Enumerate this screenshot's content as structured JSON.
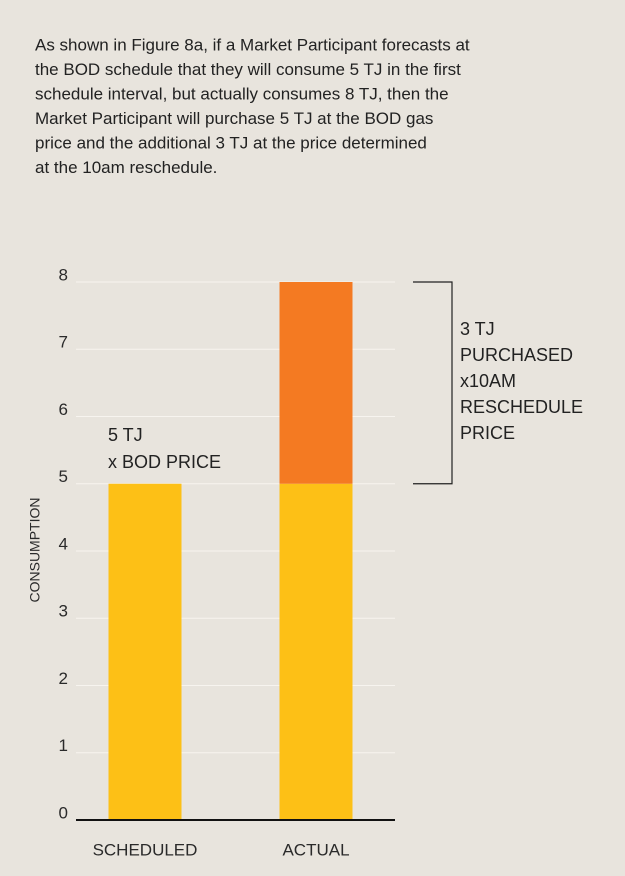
{
  "chart_data": {
    "type": "stacked_bar",
    "text_lines": [
      "As shown in Figure 8a, if a Market Participant forecasts at",
      "the BOD schedule that they will consume 5 TJ in the first",
      "schedule interval, but actually consumes 8 TJ, then the",
      "Market Participant will purchase 5 TJ at the BOD gas",
      "price and the additional 3 TJ at the price determined",
      "at the 10am reschedule."
    ],
    "y_label": "CONSUMPTION",
    "categories": [
      "SCHEDULED",
      "ACTUAL"
    ],
    "series": [
      {
        "color": "#fdc016",
        "values": [
          5,
          5
        ]
      },
      {
        "color": "#f47a22",
        "values": [
          null,
          3
        ]
      }
    ],
    "ylim": [
      0,
      8
    ],
    "yticks": [
      0,
      1,
      2,
      3,
      4,
      5,
      6,
      7,
      8
    ],
    "grid": true,
    "annotations": [
      {
        "lines": [
          "5 TJ",
          "x BOD PRICE"
        ]
      },
      {
        "lines": [
          "3 TJ",
          "PURCHASED",
          "x10AM",
          "RESCHEDULE",
          "PRICE"
        ]
      }
    ]
  }
}
